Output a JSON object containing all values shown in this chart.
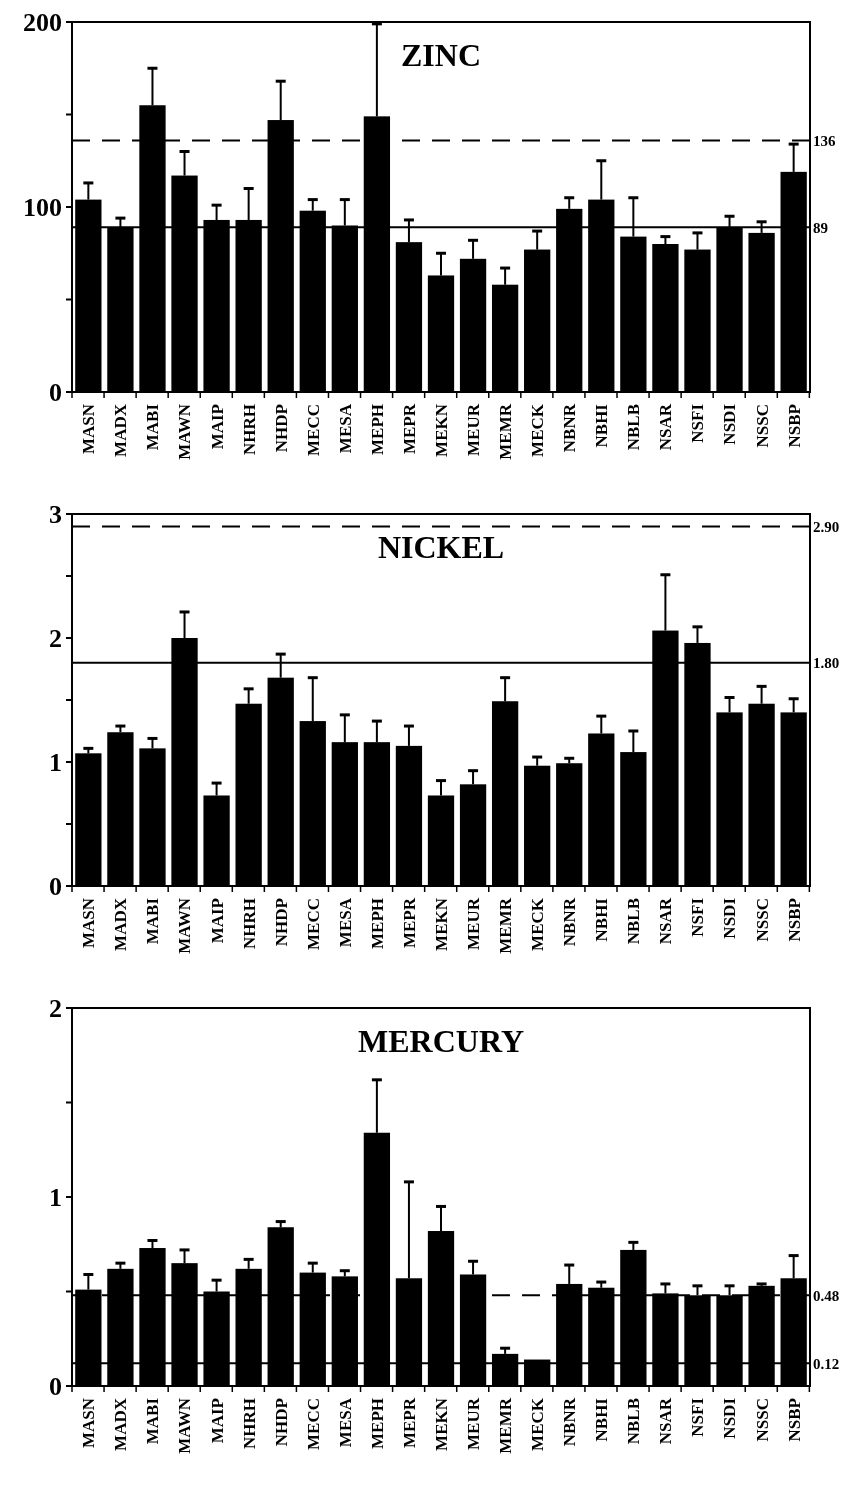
{
  "chart_data": [
    {
      "type": "bar",
      "title": "ZINC",
      "categories": [
        "MASN",
        "MADX",
        "MABI",
        "MAWN",
        "MAIP",
        "NHRH",
        "NHDP",
        "MECC",
        "MESA",
        "MEPH",
        "MEPR",
        "MEKN",
        "MEUR",
        "MEMR",
        "MECK",
        "NBNR",
        "NBHI",
        "NBLB",
        "NSAR",
        "NSFI",
        "NSDI",
        "NSSC",
        "NSBP"
      ],
      "color": "#000000",
      "values": [
        104,
        89,
        155,
        117,
        93,
        93,
        147,
        98,
        90,
        149,
        81,
        63,
        72,
        58,
        77,
        99,
        104,
        84,
        80,
        77,
        89,
        86,
        119
      ],
      "errors": [
        [
          104,
          113
        ],
        [
          89,
          94
        ],
        [
          155,
          175
        ],
        [
          117,
          130
        ],
        [
          93,
          101
        ],
        [
          93,
          110
        ],
        [
          147,
          168
        ],
        [
          98,
          104
        ],
        [
          90,
          104
        ],
        [
          149,
          199
        ],
        [
          81,
          93
        ],
        [
          63,
          75
        ],
        [
          72,
          82
        ],
        [
          58,
          67
        ],
        [
          77,
          87
        ],
        [
          99,
          105
        ],
        [
          104,
          125
        ],
        [
          84,
          105
        ],
        [
          80,
          84
        ],
        [
          77,
          86
        ],
        [
          89,
          95
        ],
        [
          86,
          92
        ],
        [
          119,
          134
        ]
      ],
      "ylim": [
        0,
        200
      ],
      "yticks": [
        0,
        {
          "value": 50,
          "label": null
        },
        100,
        {
          "value": 150,
          "label": null
        },
        200
      ],
      "ref_lines": [
        {
          "axis": "y",
          "value": 136,
          "label": "136",
          "line_style": "dashed"
        },
        {
          "axis": "y",
          "value": 89,
          "label": "89",
          "line_style": "solid"
        }
      ]
    },
    {
      "type": "bar",
      "title": "NICKEL",
      "categories": [
        "MASN",
        "MADX",
        "MABI",
        "MAWN",
        "MAIP",
        "NHRH",
        "NHDP",
        "MECC",
        "MESA",
        "MEPH",
        "MEPR",
        "MEKN",
        "MEUR",
        "MEMR",
        "MECK",
        "NBNR",
        "NBHI",
        "NBLB",
        "NSAR",
        "NSFI",
        "NSDI",
        "NSSC",
        "NSBP"
      ],
      "color": "#000000",
      "values": [
        1.07,
        1.24,
        1.11,
        2.0,
        0.73,
        1.47,
        1.68,
        1.33,
        1.16,
        1.16,
        1.13,
        0.73,
        0.82,
        1.49,
        0.97,
        0.99,
        1.23,
        1.08,
        2.06,
        1.96,
        1.4,
        1.47,
        1.4
      ],
      "errors": [
        [
          1.07,
          1.11
        ],
        [
          1.24,
          1.29
        ],
        [
          1.11,
          1.19
        ],
        [
          2.0,
          2.21
        ],
        [
          0.73,
          0.83
        ],
        [
          1.47,
          1.59
        ],
        [
          1.68,
          1.87
        ],
        [
          1.33,
          1.68
        ],
        [
          1.16,
          1.38
        ],
        [
          1.16,
          1.33
        ],
        [
          1.13,
          1.29
        ],
        [
          0.73,
          0.85
        ],
        [
          0.82,
          0.93
        ],
        [
          1.49,
          1.68
        ],
        [
          0.97,
          1.04
        ],
        [
          0.99,
          1.03
        ],
        [
          1.23,
          1.37
        ],
        [
          1.08,
          1.25
        ],
        [
          2.06,
          2.51
        ],
        [
          1.96,
          2.09
        ],
        [
          1.4,
          1.52
        ],
        [
          1.47,
          1.61
        ],
        [
          1.4,
          1.51
        ]
      ],
      "ylim": [
        0,
        3
      ],
      "yticks": [
        0,
        {
          "value": 0.5,
          "label": null
        },
        1,
        {
          "value": 1.5,
          "label": null
        },
        2,
        {
          "value": 2.5,
          "label": null
        },
        3
      ],
      "ref_lines": [
        {
          "axis": "y",
          "value": 2.9,
          "label": "2.90",
          "line_style": "dashed"
        },
        {
          "axis": "y",
          "value": 1.8,
          "label": "1.80",
          "line_style": "solid"
        }
      ]
    },
    {
      "type": "bar",
      "title": "MERCURY",
      "categories": [
        "MASN",
        "MADX",
        "MABI",
        "MAWN",
        "MAIP",
        "NHRH",
        "NHDP",
        "MECC",
        "MESA",
        "MEPH",
        "MEPR",
        "MEKN",
        "MEUR",
        "MEMR",
        "MECK",
        "NBNR",
        "NBHI",
        "NBLB",
        "NSAR",
        "NSFI",
        "NSDI",
        "NSSC",
        "NSBP"
      ],
      "color": "#000000",
      "values": [
        0.51,
        0.62,
        0.73,
        0.65,
        0.5,
        0.62,
        0.84,
        0.6,
        0.58,
        1.34,
        0.57,
        0.82,
        0.59,
        0.17,
        0.14,
        0.54,
        0.52,
        0.72,
        0.49,
        0.48,
        0.48,
        0.53,
        0.57
      ],
      "errors": [
        [
          0.51,
          0.59
        ],
        [
          0.62,
          0.65
        ],
        [
          0.73,
          0.77
        ],
        [
          0.65,
          0.72
        ],
        [
          0.5,
          0.56
        ],
        [
          0.62,
          0.67
        ],
        [
          0.84,
          0.87
        ],
        [
          0.6,
          0.65
        ],
        [
          0.58,
          0.61
        ],
        [
          1.34,
          1.62
        ],
        [
          0.57,
          1.08
        ],
        [
          0.82,
          0.95
        ],
        [
          0.59,
          0.66
        ],
        [
          0.17,
          0.2
        ],
        null,
        [
          0.54,
          0.64
        ],
        [
          0.52,
          0.55
        ],
        [
          0.72,
          0.76
        ],
        [
          0.49,
          0.54
        ],
        [
          0.48,
          0.53
        ],
        [
          0.48,
          0.53
        ],
        [
          0.53,
          0.54
        ],
        [
          0.57,
          0.69
        ]
      ],
      "ylim": [
        0,
        2
      ],
      "yticks": [
        0,
        {
          "value": 0.5,
          "label": null
        },
        1,
        {
          "value": 1.5,
          "label": null
        },
        2
      ],
      "ref_lines": [
        {
          "axis": "y",
          "value": 0.48,
          "label": "0.48",
          "line_style": "dashed"
        },
        {
          "axis": "y",
          "value": 0.12,
          "label": "0.12",
          "line_style": "solid"
        }
      ]
    }
  ]
}
